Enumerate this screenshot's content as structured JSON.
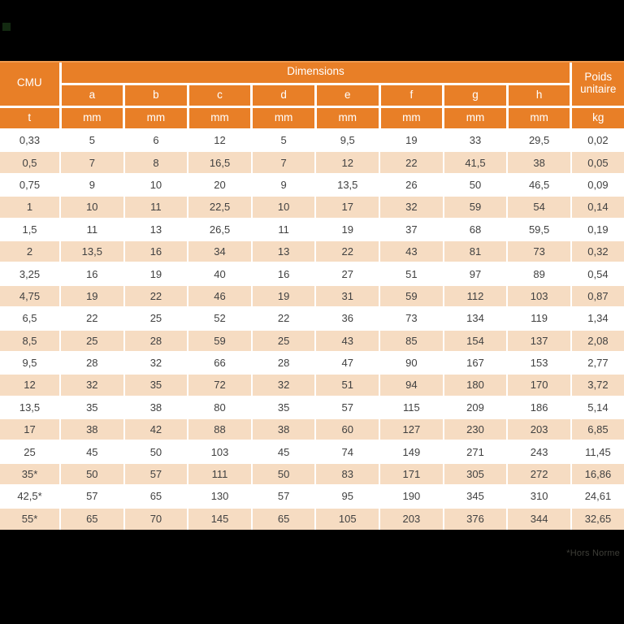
{
  "table": {
    "header": {
      "cmu": "CMU",
      "dimensions": "Dimensions",
      "poids": "Poids unitaire",
      "dim_columns": [
        "a",
        "b",
        "c",
        "d",
        "e",
        "f",
        "g",
        "h"
      ],
      "unit_row": {
        "cmu": "t",
        "dim": "mm",
        "poids": "kg"
      }
    },
    "rows": [
      [
        "0,33",
        "5",
        "6",
        "12",
        "5",
        "9,5",
        "19",
        "33",
        "29,5",
        "0,02"
      ],
      [
        "0,5",
        "7",
        "8",
        "16,5",
        "7",
        "12",
        "22",
        "41,5",
        "38",
        "0,05"
      ],
      [
        "0,75",
        "9",
        "10",
        "20",
        "9",
        "13,5",
        "26",
        "50",
        "46,5",
        "0,09"
      ],
      [
        "1",
        "10",
        "11",
        "22,5",
        "10",
        "17",
        "32",
        "59",
        "54",
        "0,14"
      ],
      [
        "1,5",
        "11",
        "13",
        "26,5",
        "11",
        "19",
        "37",
        "68",
        "59,5",
        "0,19"
      ],
      [
        "2",
        "13,5",
        "16",
        "34",
        "13",
        "22",
        "43",
        "81",
        "73",
        "0,32"
      ],
      [
        "3,25",
        "16",
        "19",
        "40",
        "16",
        "27",
        "51",
        "97",
        "89",
        "0,54"
      ],
      [
        "4,75",
        "19",
        "22",
        "46",
        "19",
        "31",
        "59",
        "112",
        "103",
        "0,87"
      ],
      [
        "6,5",
        "22",
        "25",
        "52",
        "22",
        "36",
        "73",
        "134",
        "119",
        "1,34"
      ],
      [
        "8,5",
        "25",
        "28",
        "59",
        "25",
        "43",
        "85",
        "154",
        "137",
        "2,08"
      ],
      [
        "9,5",
        "28",
        "32",
        "66",
        "28",
        "47",
        "90",
        "167",
        "153",
        "2,77"
      ],
      [
        "12",
        "32",
        "35",
        "72",
        "32",
        "51",
        "94",
        "180",
        "170",
        "3,72"
      ],
      [
        "13,5",
        "35",
        "38",
        "80",
        "35",
        "57",
        "115",
        "209",
        "186",
        "5,14"
      ],
      [
        "17",
        "38",
        "42",
        "88",
        "38",
        "60",
        "127",
        "230",
        "203",
        "6,85"
      ],
      [
        "25",
        "45",
        "50",
        "103",
        "45",
        "74",
        "149",
        "271",
        "243",
        "11,45"
      ],
      [
        "35*",
        "50",
        "57",
        "111",
        "50",
        "83",
        "171",
        "305",
        "272",
        "16,86"
      ],
      [
        "42,5*",
        "57",
        "65",
        "130",
        "57",
        "95",
        "190",
        "345",
        "310",
        "24,61"
      ],
      [
        "55*",
        "65",
        "70",
        "145",
        "65",
        "105",
        "203",
        "376",
        "344",
        "32,65"
      ]
    ]
  },
  "footnote": "*Hors Norme",
  "colors": {
    "header_orange": "#e87f27",
    "header_top_line": "#f09a4e",
    "row_stripe_peach": "#f6dcc2",
    "row_plain": "#ffffff",
    "grid_white": "#ffffff",
    "background_black": "#000000",
    "data_text": "#414141",
    "corner_square_green": "#132a11"
  }
}
